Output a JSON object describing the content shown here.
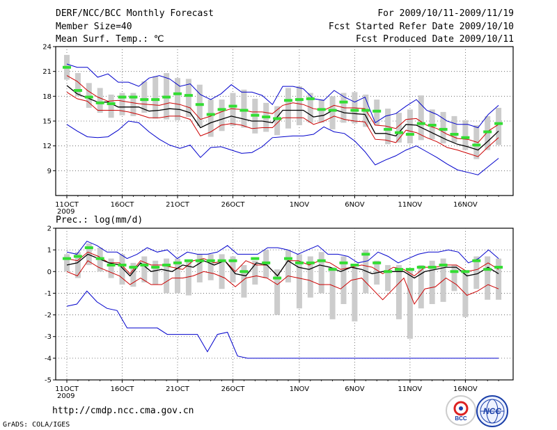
{
  "header": {
    "title": "DERF/NCC/BCC Monthly Forecast",
    "member_size": "Member Size=40",
    "variable": "Mean Surf. Temp.: ℃",
    "period": "For 2009/10/11-2009/11/19",
    "start_date": "Fcst Started Refer Date 2009/10/10",
    "produced_date": "Fcst Produced Date 2009/10/11"
  },
  "footer": {
    "url": "http://cmdp.ncc.cma.gov.cn",
    "grads": "GrADS: COLA/IGES",
    "logo_left_text": "BCC",
    "logo_right_text": "NCC"
  },
  "colors": {
    "max_min": "#0000cc",
    "spread": "#cc0000",
    "mean": "#000000",
    "observed": "#33dd33",
    "box": "#cccccc"
  },
  "chart_data": [
    {
      "type": "line",
      "title": "Mean Surf. Temp.: ℃",
      "x_days": 40,
      "x_tick_labels": [
        {
          "day": 1,
          "label": "11OCT",
          "sub": "2009"
        },
        {
          "day": 6,
          "label": "16OCT",
          "sub": ""
        },
        {
          "day": 11,
          "label": "21OCT",
          "sub": ""
        },
        {
          "day": 16,
          "label": "26OCT",
          "sub": ""
        },
        {
          "day": 22,
          "label": "1NOV",
          "sub": ""
        },
        {
          "day": 27,
          "label": "6NOV",
          "sub": ""
        },
        {
          "day": 32,
          "label": "11NOV",
          "sub": ""
        },
        {
          "day": 37,
          "label": "16NOV",
          "sub": ""
        }
      ],
      "ylim": [
        6,
        24
      ],
      "yticks": [
        9,
        12,
        15,
        18,
        21,
        24
      ],
      "grid": true,
      "series": [
        {
          "name": "max",
          "color": "#0000cc",
          "values": [
            21.9,
            21.5,
            21.5,
            20.3,
            20.7,
            19.7,
            19.7,
            19.2,
            20.2,
            20.5,
            20.1,
            19.2,
            19.5,
            18.2,
            17.6,
            18.3,
            19.4,
            18.5,
            18.5,
            18.1,
            17.0,
            19.2,
            19.2,
            18.9,
            17.7,
            17.5,
            18.7,
            17.9,
            17.3,
            17.9,
            14.8,
            15.6,
            15.9,
            16.8,
            17.6,
            16.3,
            15.8,
            15.0,
            14.6,
            14.6,
            14.2,
            15.8,
            16.9
          ]
        },
        {
          "name": "upper",
          "color": "#cc0000",
          "values": [
            20.5,
            19.8,
            18.7,
            17.9,
            17.4,
            17.5,
            17.3,
            17.1,
            17.0,
            16.9,
            17.2,
            17.0,
            16.6,
            15.2,
            15.6,
            16.1,
            16.5,
            16.4,
            16.1,
            16.1,
            15.9,
            16.9,
            17.2,
            17.0,
            16.5,
            16.3,
            16.9,
            16.6,
            16.6,
            16.5,
            14.5,
            14.4,
            14.1,
            15.2,
            15.3,
            14.5,
            14.1,
            13.4,
            12.9,
            12.8,
            12.4,
            13.8,
            14.6
          ]
        },
        {
          "name": "mean",
          "color": "#000000",
          "values": [
            19.3,
            18.3,
            17.8,
            17.3,
            17.3,
            16.7,
            16.7,
            16.7,
            16.2,
            16.3,
            16.5,
            16.4,
            16.0,
            14.2,
            14.8,
            15.2,
            15.6,
            15.3,
            15.0,
            15.0,
            14.8,
            16.3,
            16.3,
            16.3,
            15.5,
            15.7,
            16.4,
            16.0,
            15.9,
            15.8,
            13.5,
            13.5,
            13.2,
            14.6,
            14.5,
            13.9,
            13.3,
            12.7,
            12.2,
            11.9,
            11.5,
            12.6,
            13.8
          ]
        },
        {
          "name": "lower",
          "color": "#cc0000",
          "values": [
            18.5,
            17.7,
            17.4,
            16.3,
            16.3,
            16.3,
            16.1,
            15.8,
            15.4,
            15.4,
            15.6,
            15.6,
            15.2,
            13.2,
            13.7,
            14.5,
            14.7,
            14.5,
            14.1,
            14.2,
            14.2,
            15.4,
            15.4,
            15.4,
            14.6,
            15.0,
            15.6,
            15.2,
            15.0,
            14.9,
            12.8,
            12.7,
            12.4,
            13.9,
            13.6,
            13.0,
            12.5,
            11.8,
            11.5,
            11.1,
            10.7,
            11.9,
            13.0
          ]
        },
        {
          "name": "min",
          "color": "#0000cc",
          "values": [
            14.6,
            13.8,
            13.1,
            13.0,
            13.1,
            13.9,
            15.0,
            14.8,
            13.7,
            12.8,
            12.1,
            11.7,
            12.1,
            10.6,
            11.8,
            11.9,
            11.5,
            11.1,
            11.2,
            11.9,
            13.0,
            13.1,
            13.2,
            13.2,
            13.4,
            14.3,
            13.7,
            13.5,
            12.6,
            11.3,
            9.7,
            10.3,
            10.8,
            11.5,
            12.0,
            11.3,
            10.6,
            9.8,
            9.1,
            8.8,
            8.5,
            9.5,
            10.5
          ]
        }
      ],
      "observed": [
        21.5,
        18.7,
        17.9,
        17.2,
        17.1,
        17.9,
        17.9,
        17.6,
        17.6,
        17.9,
        18.3,
        18.1,
        17.0,
        15.8,
        16.4,
        16.8,
        16.3,
        15.7,
        15.5,
        15.3,
        17.5,
        17.6,
        17.7,
        16.4,
        16.3,
        17.3,
        16.3,
        16.3,
        16.2,
        14.0,
        13.6,
        13.4,
        14.7,
        14.5,
        14.0,
        13.4,
        13.0,
        12.1,
        13.7,
        14.7
      ],
      "box_ranges": [
        [
          20.0,
          23.0
        ],
        [
          18.0,
          20.8
        ],
        [
          16.6,
          19.6
        ],
        [
          16.0,
          19.0
        ],
        [
          15.4,
          18.2
        ],
        [
          15.7,
          18.4
        ],
        [
          15.6,
          18.4
        ],
        [
          16.0,
          19.8
        ],
        [
          15.3,
          20.4
        ],
        [
          15.2,
          20.8
        ],
        [
          15.1,
          20.2
        ],
        [
          15.5,
          20.1
        ],
        [
          14.4,
          19.4
        ],
        [
          13.1,
          17.6
        ],
        [
          13.8,
          17.6
        ],
        [
          14.4,
          18.4
        ],
        [
          14.2,
          18.8
        ],
        [
          13.5,
          17.7
        ],
        [
          13.7,
          17.2
        ],
        [
          13.3,
          16.8
        ],
        [
          14.1,
          19.0
        ],
        [
          14.5,
          19.2
        ],
        [
          14.8,
          18.4
        ],
        [
          14.8,
          17.6
        ],
        [
          14.0,
          18.0
        ],
        [
          14.8,
          18.4
        ],
        [
          14.7,
          18.5
        ],
        [
          14.3,
          18.2
        ],
        [
          14.5,
          17.6
        ],
        [
          12.2,
          16.5
        ],
        [
          12.4,
          16.0
        ],
        [
          12.3,
          16.4
        ],
        [
          12.7,
          18.1
        ],
        [
          12.8,
          16.4
        ],
        [
          12.3,
          16.1
        ],
        [
          12.4,
          15.6
        ],
        [
          11.5,
          15.1
        ],
        [
          10.4,
          14.5
        ],
        [
          11.5,
          15.6
        ],
        [
          12.1,
          16.6
        ]
      ]
    },
    {
      "type": "line",
      "title": "Prec.: log(mm/d)",
      "x_days": 40,
      "x_tick_labels": [
        {
          "day": 1,
          "label": "11OCT",
          "sub": "2009"
        },
        {
          "day": 6,
          "label": "16OCT",
          "sub": ""
        },
        {
          "day": 11,
          "label": "21OCT",
          "sub": ""
        },
        {
          "day": 16,
          "label": "26OCT",
          "sub": ""
        },
        {
          "day": 22,
          "label": "1NOV",
          "sub": ""
        },
        {
          "day": 27,
          "label": "6NOV",
          "sub": ""
        },
        {
          "day": 32,
          "label": "11NOV",
          "sub": ""
        },
        {
          "day": 37,
          "label": "16NOV",
          "sub": ""
        }
      ],
      "ylim": [
        -5,
        2
      ],
      "yticks": [
        -5,
        -4,
        -3,
        -2,
        -1,
        0,
        1,
        2
      ],
      "grid": true,
      "series": [
        {
          "name": "max",
          "color": "#0000cc",
          "values": [
            0.9,
            0.8,
            1.4,
            1.2,
            0.9,
            0.9,
            0.6,
            0.8,
            1.1,
            0.9,
            1.0,
            0.6,
            0.9,
            0.8,
            0.8,
            0.9,
            1.2,
            0.8,
            0.8,
            0.8,
            1.1,
            1.1,
            1.0,
            0.8,
            1.0,
            1.2,
            0.8,
            0.8,
            0.7,
            0.4,
            0.5,
            0.9,
            0.7,
            0.4,
            0.6,
            0.8,
            0.9,
            0.9,
            1.0,
            0.9,
            0.4,
            0.6,
            1.0,
            0.6
          ]
        },
        {
          "name": "upper",
          "color": "#cc0000",
          "values": [
            0.6,
            0.5,
            0.9,
            0.7,
            0.4,
            0.4,
            -0.1,
            0.5,
            0.3,
            0.3,
            0.2,
            0.1,
            0.5,
            0.6,
            0.4,
            0.5,
            0.0,
            0.5,
            0.3,
            0.3,
            -0.2,
            0.5,
            0.5,
            0.3,
            0.5,
            0.4,
            0.1,
            0.2,
            0.3,
            0.2,
            -0.1,
            0.2,
            0.1,
            -0.2,
            0.2,
            0.2,
            0.3,
            0.3,
            0.0,
            0.1,
            0.4,
            0.1
          ]
        },
        {
          "name": "mean",
          "color": "#000000",
          "values": [
            0.3,
            0.4,
            0.8,
            0.6,
            0.4,
            0.3,
            -0.2,
            0.4,
            0.0,
            0.1,
            0.0,
            0.3,
            0.2,
            0.5,
            0.3,
            0.5,
            -0.1,
            -0.2,
            0.4,
            0.3,
            -0.2,
            0.5,
            0.2,
            0.1,
            0.3,
            0.2,
            0.0,
            0.2,
            0.1,
            -0.1,
            0.0,
            0.0,
            0.0,
            -0.3,
            0.0,
            0.1,
            0.2,
            0.2,
            -0.2,
            -0.1,
            0.2,
            -0.1
          ]
        },
        {
          "name": "lower",
          "color": "#cc0000",
          "values": [
            0.0,
            -0.2,
            0.5,
            0.2,
            0.0,
            -0.2,
            -0.6,
            -0.3,
            -0.6,
            -0.6,
            -0.3,
            -0.3,
            -0.2,
            0.0,
            -0.1,
            -0.3,
            -0.7,
            -0.3,
            -0.2,
            -0.3,
            -0.6,
            -0.2,
            -0.3,
            -0.4,
            -0.6,
            -0.6,
            -0.8,
            -0.4,
            -0.3,
            -0.8,
            -1.3,
            -0.8,
            -0.3,
            -1.5,
            -0.8,
            -0.7,
            -0.3,
            -0.6,
            -1.1,
            -0.9,
            -0.6,
            -0.8
          ]
        },
        {
          "name": "min",
          "color": "#0000cc",
          "values": [
            -1.6,
            -1.5,
            -0.9,
            -1.4,
            -1.7,
            -1.8,
            -2.6,
            -2.6,
            -2.6,
            -2.6,
            -2.9,
            -2.9,
            -2.9,
            -2.9,
            -3.7,
            -2.9,
            -2.8,
            -3.9,
            -4.0,
            -4.0,
            -4.0,
            -4.0,
            -4.0,
            -4.0,
            -4.0,
            -4.0,
            -4.0,
            -4.0,
            -4.0,
            -4.0,
            -4.0,
            -4.0,
            -4.0,
            -4.0,
            -4.0,
            -4.0,
            -4.0,
            -4.0,
            -4.0,
            -4.0,
            -4.0,
            -4.0,
            -4.0,
            -4.0
          ]
        }
      ],
      "observed": [
        0.6,
        0.7,
        1.1,
        0.6,
        0.3,
        0.3,
        0.2,
        0.3,
        0.2,
        0.3,
        0.4,
        0.5,
        0.5,
        0.5,
        0.5,
        0.5,
        0.0,
        0.6,
        0.4,
        -0.3,
        0.6,
        0.4,
        0.4,
        0.5,
        0.1,
        0.4,
        0.3,
        0.8,
        0.4,
        0.0,
        0.1,
        0.1,
        0.2,
        0.2,
        0.3,
        0.0,
        0.0,
        0.5,
        0.1,
        0.2
      ],
      "box_ranges": [
        [
          0.0,
          0.8
        ],
        [
          -0.3,
          0.9
        ],
        [
          0.3,
          1.3
        ],
        [
          0.0,
          1.1
        ],
        [
          -0.3,
          0.6
        ],
        [
          -0.6,
          0.8
        ],
        [
          -0.7,
          0.4
        ],
        [
          -0.5,
          0.7
        ],
        [
          -0.6,
          0.5
        ],
        [
          -1.0,
          0.6
        ],
        [
          -1.0,
          0.6
        ],
        [
          -1.1,
          0.5
        ],
        [
          -0.5,
          0.8
        ],
        [
          -0.4,
          0.8
        ],
        [
          -0.8,
          0.8
        ],
        [
          -0.5,
          0.7
        ],
        [
          -1.2,
          0.3
        ],
        [
          -0.6,
          0.5
        ],
        [
          -0.3,
          1.0
        ],
        [
          -2.0,
          0.1
        ],
        [
          -0.5,
          1.0
        ],
        [
          -1.7,
          0.8
        ],
        [
          -1.2,
          0.7
        ],
        [
          -1.0,
          0.9
        ],
        [
          -2.2,
          0.2
        ],
        [
          -1.5,
          0.7
        ],
        [
          -2.3,
          0.2
        ],
        [
          -1.0,
          1.0
        ],
        [
          -0.6,
          0.5
        ],
        [
          -0.9,
          0.3
        ],
        [
          -2.2,
          0.3
        ],
        [
          -3.1,
          0.1
        ],
        [
          -1.7,
          0.3
        ],
        [
          -1.5,
          0.5
        ],
        [
          -1.4,
          0.6
        ],
        [
          -0.9,
          0.3
        ],
        [
          -2.1,
          0.0
        ],
        [
          -0.8,
          0.7
        ],
        [
          -1.3,
          0.7
        ],
        [
          -1.3,
          0.6
        ]
      ]
    }
  ]
}
